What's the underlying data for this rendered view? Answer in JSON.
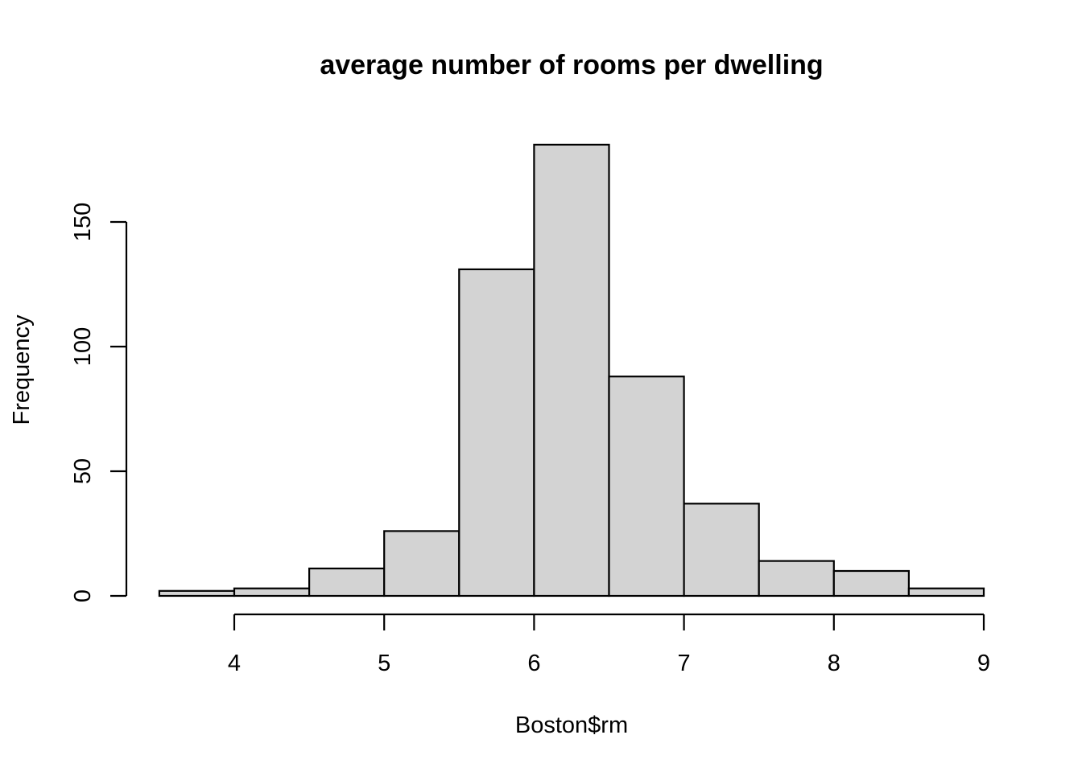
{
  "chart_data": {
    "type": "bar",
    "title": "average number of rooms per dwelling",
    "xlabel": "Boston$rm",
    "ylabel": "Frequency",
    "bins": [
      {
        "from": 3.5,
        "to": 4.0,
        "count": 2
      },
      {
        "from": 4.0,
        "to": 4.5,
        "count": 3
      },
      {
        "from": 4.5,
        "to": 5.0,
        "count": 11
      },
      {
        "from": 5.0,
        "to": 5.5,
        "count": 26
      },
      {
        "from": 5.5,
        "to": 6.0,
        "count": 131
      },
      {
        "from": 6.0,
        "to": 6.5,
        "count": 181
      },
      {
        "from": 6.5,
        "to": 7.0,
        "count": 88
      },
      {
        "from": 7.0,
        "to": 7.5,
        "count": 37
      },
      {
        "from": 7.5,
        "to": 8.0,
        "count": 14
      },
      {
        "from": 8.0,
        "to": 8.5,
        "count": 10
      },
      {
        "from": 8.5,
        "to": 9.0,
        "count": 3
      }
    ],
    "x_ticks": [
      4,
      5,
      6,
      7,
      8,
      9
    ],
    "y_ticks": [
      0,
      50,
      100,
      150
    ],
    "grid": false,
    "colors": {
      "bar_fill": "#d3d3d3",
      "bar_stroke": "#000000"
    }
  }
}
